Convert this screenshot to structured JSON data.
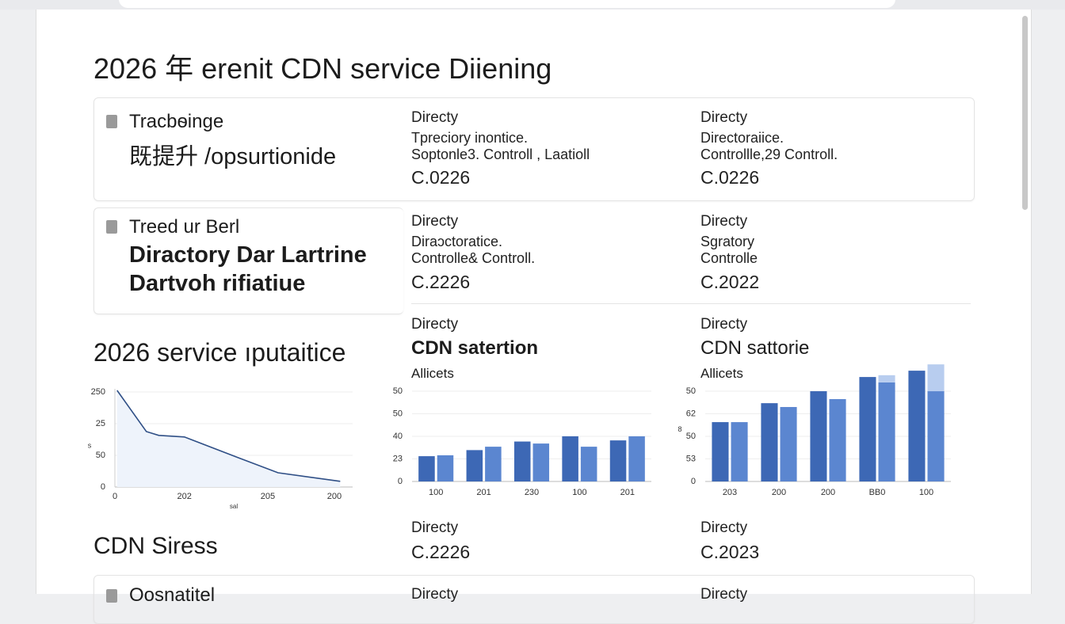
{
  "title": "2026 年 erenit CDN service Diiening",
  "cards": [
    {
      "heading": "Tracbѳinge",
      "lines": [
        "既提升 /opsurtionide"
      ],
      "columns": [
        {
          "label": "Directy",
          "lines": [
            "Tpreciory inontice.",
            "Soptonle3. Controll , Laatioll"
          ],
          "value": "C.0226"
        },
        {
          "label": "Directy",
          "lines": [
            "Directoraiice.",
            "Controllle,29 Controll."
          ],
          "value": "C.0226"
        }
      ]
    },
    {
      "heading": "Treed ur Berl",
      "lines": [
        "Diractory Dar Lartrine",
        "Dartvoh rifiatiue"
      ],
      "columns": [
        {
          "label": "Directy",
          "lines": [
            "Diraɔctoratice.",
            "Controlle& Controll."
          ],
          "value": "C.2226"
        },
        {
          "label": "Directy",
          "lines": [
            "Sgratory",
            "Controlle"
          ],
          "value": "C.2022"
        }
      ]
    }
  ],
  "section": {
    "title": "2026 service ıputaitice",
    "columns": [
      {
        "label": "Directy",
        "heading": "CDN satertion",
        "sub": "Allicets"
      },
      {
        "label": "Directy",
        "heading": "CDN sattorie",
        "sub": "Allicets"
      }
    ]
  },
  "chart_data": [
    {
      "type": "line",
      "ylabel": "s",
      "xlabel": "sal",
      "x": [
        0.03,
        0.43,
        0.6,
        0.95,
        1.68,
        2.23,
        3.08
      ],
      "series": [
        {
          "color": "#2f4f86",
          "values": [
            3.05,
            1.75,
            1.63,
            1.58,
            0.93,
            0.45,
            0.18
          ]
        }
      ],
      "xlim": [
        0,
        3.25
      ],
      "ylim": [
        0,
        3.1
      ],
      "xticks": [
        0,
        {
          "value": 0.95,
          "label": "202"
        },
        {
          "value": 2.09,
          "label": "205"
        },
        {
          "value": 3,
          "label": "200"
        }
      ],
      "yticks": [
        {
          "value": 3,
          "label": "250"
        },
        {
          "value": 2,
          "label": "25"
        },
        {
          "value": 1,
          "label": "50"
        },
        0
      ],
      "grid": true
    },
    {
      "type": "bar",
      "categories": [
        "100",
        "201",
        "230",
        "100",
        "201"
      ],
      "series": [
        {
          "color": "#3d68b5",
          "values": [
            1.12,
            1.39,
            1.77,
            2.0,
            1.82
          ]
        },
        {
          "color": "#5b86d0",
          "values": [
            1.16,
            1.54,
            1.68,
            1.54,
            2.0
          ]
        }
      ],
      "ylim": [
        0,
        4.5
      ],
      "yticks": [
        0,
        {
          "value": 1,
          "label": "23"
        },
        {
          "value": 2,
          "label": "40"
        },
        {
          "value": 3,
          "label": "50"
        },
        {
          "value": 4,
          "label": "50"
        }
      ],
      "grid": true
    },
    {
      "type": "bar",
      "ylabel": "8",
      "categories": [
        "203",
        "200",
        "200",
        "BB0",
        "100"
      ],
      "series": [
        {
          "color": "#3d68b5",
          "values": [
            2.63,
            3.47,
            4.0,
            4.63,
            4.91
          ]
        },
        {
          "color": "#5b86d0",
          "values": [
            2.63,
            3.3,
            3.65,
            4.39,
            4.0
          ]
        },
        {
          "color": "#b8cdef",
          "values": [
            0,
            0,
            0,
            0.32,
            1.19
          ],
          "stack_on": 1
        }
      ],
      "ylim": [
        0,
        5.3
      ],
      "yticks": [
        0,
        {
          "value": 1,
          "label": "53"
        },
        {
          "value": 2,
          "label": "50"
        },
        {
          "value": 3,
          "label": "62"
        },
        {
          "value": 4,
          "label": "50"
        }
      ],
      "grid": true
    }
  ],
  "footer": {
    "title": "CDN Siress",
    "columns": [
      {
        "label": "Directy",
        "value": "C.2226"
      },
      {
        "label": "Directy",
        "value": "C.2023"
      }
    ]
  },
  "last_card": {
    "heading": "Oosnatitel",
    "columns": [
      "Directy",
      "Directy"
    ]
  }
}
